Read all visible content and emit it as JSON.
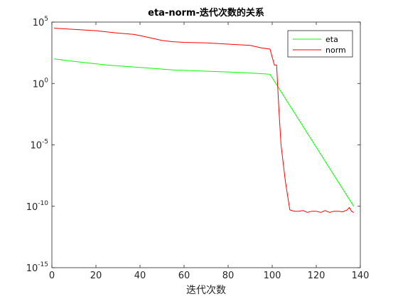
{
  "chart_data": {
    "type": "line",
    "title": "eta-norm-迭代次数的关系",
    "xlabel": "迭代次数",
    "ylabel": "",
    "xlim": [
      0,
      140
    ],
    "ylim_log10": [
      -15,
      5
    ],
    "y_scale": "log",
    "grid": false,
    "legend_position": "top-right",
    "x_ticks": [
      "0",
      "20",
      "40",
      "60",
      "80",
      "100",
      "120",
      "140"
    ],
    "y_ticks": [
      {
        "base": "10",
        "exp": "-15",
        "value": -15
      },
      {
        "base": "10",
        "exp": "-10",
        "value": -10
      },
      {
        "base": "10",
        "exp": "-5",
        "value": -5
      },
      {
        "base": "10",
        "exp": "0",
        "value": 0
      },
      {
        "base": "10",
        "exp": "5",
        "value": 5
      }
    ],
    "series": [
      {
        "name": "eta",
        "color": "#00ff00",
        "x": [
          1,
          10,
          25,
          40,
          55,
          70,
          85,
          95,
          99,
          137
        ],
        "log10_y": [
          2.0,
          1.8,
          1.5,
          1.3,
          1.1,
          1.0,
          0.9,
          0.8,
          0.75,
          -10.0
        ]
      },
      {
        "name": "norm",
        "color": "#ff0000",
        "x": [
          1,
          10,
          20,
          30,
          37,
          40,
          45,
          50,
          55,
          60,
          70,
          80,
          90,
          95,
          99,
          101,
          102,
          103,
          104,
          106,
          108,
          110,
          112,
          114,
          116,
          118,
          120,
          122,
          124,
          126,
          128,
          130,
          132,
          134,
          135,
          136,
          137
        ],
        "log10_y": [
          4.5,
          4.4,
          4.3,
          4.1,
          4.0,
          3.9,
          3.7,
          3.5,
          3.4,
          3.35,
          3.3,
          3.2,
          3.1,
          2.9,
          2.8,
          1.5,
          1.5,
          -2.0,
          -5.0,
          -8.0,
          -10.3,
          -10.4,
          -10.4,
          -10.35,
          -10.5,
          -10.4,
          -10.4,
          -10.5,
          -10.35,
          -10.5,
          -10.4,
          -10.4,
          -10.45,
          -10.3,
          -10.1,
          -10.4,
          -10.5
        ]
      }
    ]
  }
}
